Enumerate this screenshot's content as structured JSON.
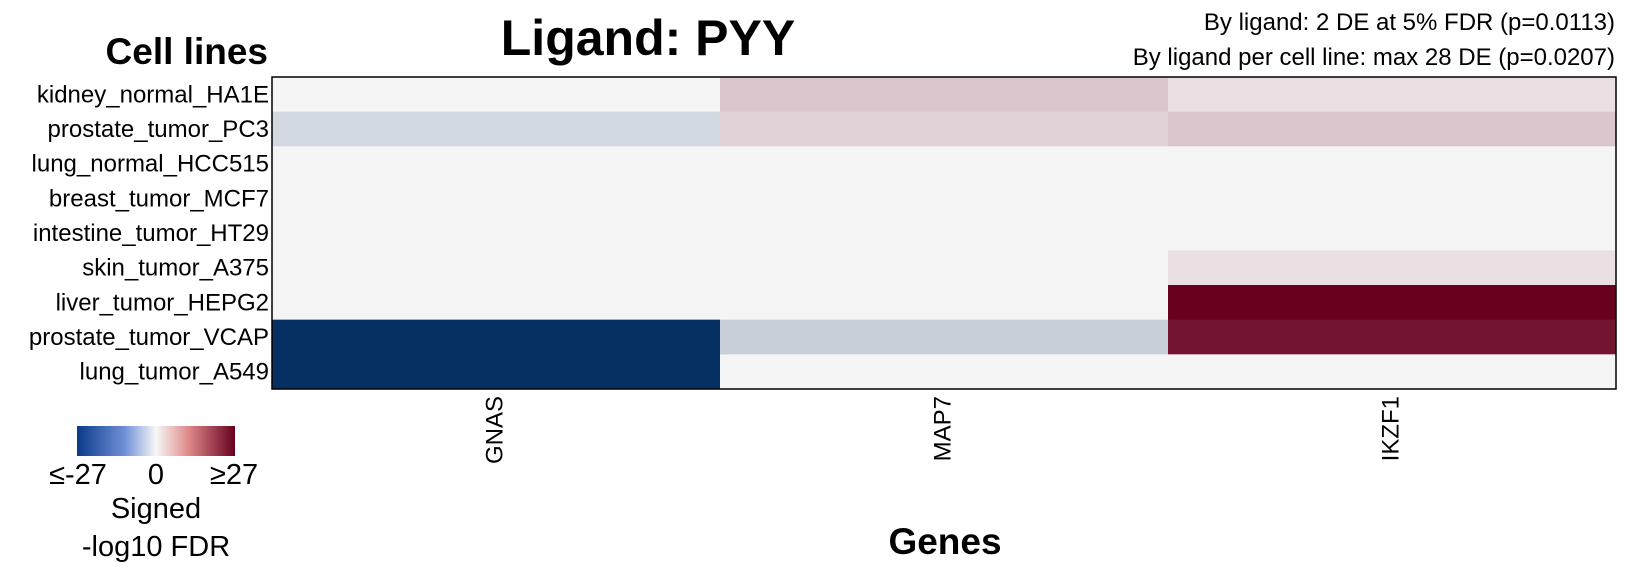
{
  "chart_data": {
    "type": "heatmap",
    "title": "Ligand: PYY",
    "subtitle_lines": [
      "By ligand: 2 DE at 5% FDR (p=0.0113)",
      "By ligand per cell line: max 28 DE (p=0.0207)"
    ],
    "ylabel": "Cell lines",
    "xlabel": "Genes",
    "columns": [
      "GNAS",
      "MAP7",
      "IKZF1"
    ],
    "rows": [
      "kidney_normal_HA1E",
      "prostate_tumor_PC3",
      "lung_normal_HCC515",
      "breast_tumor_MCF7",
      "intestine_tumor_HT29",
      "skin_tumor_A375",
      "liver_tumor_HEPG2",
      "prostate_tumor_VCAP",
      "lung_tumor_A549"
    ],
    "values": [
      [
        0,
        3,
        1
      ],
      [
        -2,
        2,
        3
      ],
      [
        0,
        0,
        0
      ],
      [
        0,
        0,
        0
      ],
      [
        0,
        0,
        0
      ],
      [
        0,
        0,
        1
      ],
      [
        0,
        0,
        27
      ],
      [
        -27,
        -3,
        24
      ],
      [
        -27,
        0,
        0
      ]
    ],
    "range": [
      -27,
      27
    ],
    "colors": {
      "negative": "#053061",
      "neutral": "#f5f5f5",
      "positive": "#67001f"
    },
    "legend": {
      "min_label": "≤-27",
      "mid_label": "0",
      "max_label": "≥27",
      "title_line1": "Signed",
      "title_line2": "-log10 FDR"
    }
  }
}
